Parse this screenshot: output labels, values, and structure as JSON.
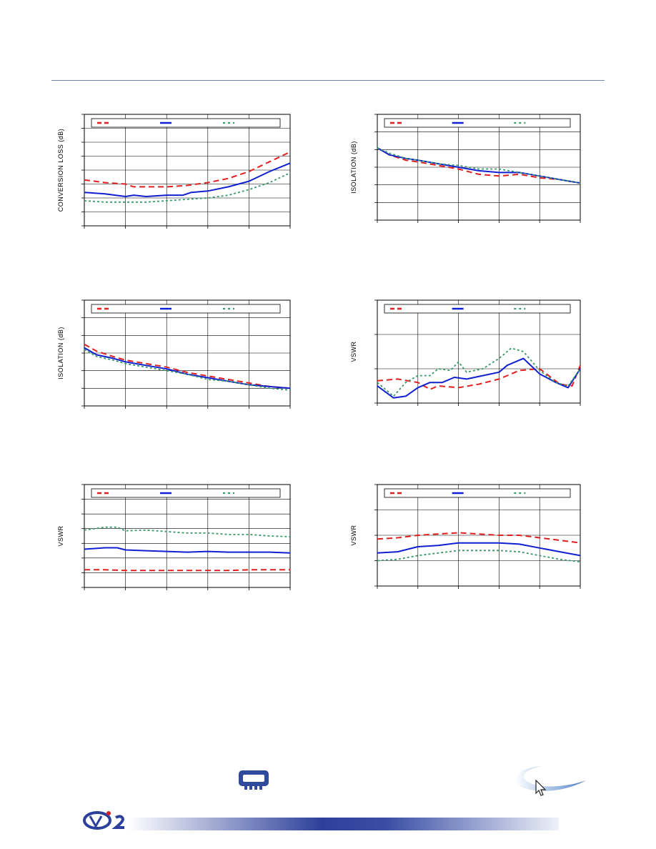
{
  "page": {
    "colors": {
      "rule": "#6f86a6",
      "red": "#e02020",
      "blue": "#1020d0",
      "green": "#3a9a6a",
      "grid": "#000000",
      "footer_dark": "#2c3f9a",
      "footer_light": "#e8ecf5"
    },
    "icons": [
      "chip-badge-icon",
      "cursor-swoosh-icon",
      "company-logo-icon"
    ]
  },
  "chart_data": [
    {
      "type": "line",
      "ylabel": "CONVERSION LOSS (dB)",
      "xlim": [
        0,
        5
      ],
      "ylim": [
        0,
        8
      ],
      "x_ticks": 5,
      "y_ticks": 8,
      "grid": true,
      "legend": "top",
      "series": [
        {
          "x": [
            0,
            0.5,
            1,
            1.2,
            1.5,
            2,
            2.5,
            3,
            3.5,
            4,
            4.5,
            5
          ],
          "values": [
            3.3,
            3.1,
            3.0,
            2.8,
            2.8,
            2.8,
            2.9,
            3.1,
            3.4,
            3.9,
            4.6,
            5.3
          ]
        },
        {
          "x": [
            0,
            0.5,
            1,
            1.2,
            1.5,
            2,
            2.4,
            2.6,
            3,
            3.5,
            4,
            4.5,
            5
          ],
          "values": [
            2.4,
            2.3,
            2.1,
            2.2,
            2.1,
            2.2,
            2.2,
            2.4,
            2.5,
            2.8,
            3.2,
            3.9,
            4.5
          ]
        },
        {
          "x": [
            0,
            0.5,
            1,
            1.5,
            2,
            2.5,
            3,
            3.5,
            4,
            4.5,
            5
          ],
          "values": [
            1.8,
            1.7,
            1.7,
            1.7,
            1.8,
            1.9,
            2.0,
            2.2,
            2.6,
            3.1,
            3.8
          ]
        }
      ]
    },
    {
      "type": "line",
      "ylabel": "ISOLATION (dB)",
      "xlim": [
        0,
        5
      ],
      "ylim": [
        0,
        6
      ],
      "x_ticks": 5,
      "y_ticks": 6,
      "grid": true,
      "legend": "top",
      "series": [
        {
          "x": [
            0,
            0.3,
            0.7,
            1,
            1.5,
            2,
            2.5,
            3,
            3.5,
            4,
            4.5,
            5
          ],
          "values": [
            4.1,
            3.7,
            3.4,
            3.3,
            3.1,
            2.9,
            2.6,
            2.5,
            2.6,
            2.4,
            2.3,
            2.1
          ]
        },
        {
          "x": [
            0,
            0.3,
            0.7,
            1,
            1.5,
            2,
            2.5,
            3,
            3.5,
            4,
            4.5,
            5
          ],
          "values": [
            4.1,
            3.7,
            3.5,
            3.4,
            3.2,
            3.0,
            2.8,
            2.7,
            2.7,
            2.5,
            2.3,
            2.1
          ]
        },
        {
          "x": [
            0,
            0.3,
            0.7,
            1,
            1.5,
            2,
            2.5,
            3,
            3.5,
            4,
            4.5,
            5
          ],
          "values": [
            4.1,
            3.8,
            3.5,
            3.4,
            3.2,
            3.1,
            2.9,
            2.9,
            2.7,
            2.5,
            2.3,
            2.1
          ]
        }
      ]
    },
    {
      "type": "line",
      "ylabel": "ISOLATION (dB)",
      "xlim": [
        0,
        5
      ],
      "ylim": [
        0,
        6
      ],
      "x_ticks": 5,
      "y_ticks": 6,
      "grid": true,
      "legend": "top",
      "series": [
        {
          "x": [
            0,
            0.3,
            0.7,
            1,
            1.5,
            2,
            2.5,
            3,
            3.5,
            4,
            4.5,
            5
          ],
          "values": [
            3.5,
            3.1,
            2.8,
            2.6,
            2.4,
            2.2,
            1.9,
            1.7,
            1.5,
            1.3,
            1.1,
            1.0
          ]
        },
        {
          "x": [
            0,
            0.3,
            0.7,
            1,
            1.5,
            2,
            2.5,
            3,
            3.5,
            4,
            4.5,
            5
          ],
          "values": [
            3.3,
            2.9,
            2.7,
            2.5,
            2.3,
            2.1,
            1.8,
            1.6,
            1.4,
            1.2,
            1.1,
            1.0
          ]
        },
        {
          "x": [
            0,
            0.3,
            0.7,
            1,
            1.5,
            2,
            2.5,
            3,
            3.5,
            4,
            4.5,
            5
          ],
          "values": [
            3.2,
            2.8,
            2.6,
            2.4,
            2.2,
            2.0,
            1.8,
            1.5,
            1.4,
            1.2,
            1.0,
            0.9
          ]
        }
      ]
    },
    {
      "type": "line",
      "ylabel": "VSWR",
      "xlim": [
        0,
        5
      ],
      "ylim": [
        0,
        3
      ],
      "x_ticks": 5,
      "y_ticks": 3,
      "grid": true,
      "legend": "top",
      "series": [
        {
          "x": [
            0,
            0.5,
            1,
            1.3,
            1.5,
            2,
            2.5,
            3,
            3.5,
            4,
            4.5,
            4.8,
            5
          ],
          "values": [
            0.65,
            0.7,
            0.6,
            0.4,
            0.5,
            0.45,
            0.55,
            0.7,
            0.95,
            1.0,
            0.55,
            0.5,
            1.1
          ]
        },
        {
          "x": [
            0,
            0.4,
            0.7,
            1,
            1.3,
            1.6,
            1.9,
            2.2,
            2.6,
            3,
            3.2,
            3.6,
            4,
            4.4,
            4.7,
            5
          ],
          "values": [
            0.5,
            0.15,
            0.2,
            0.45,
            0.6,
            0.6,
            0.75,
            0.7,
            0.8,
            0.9,
            1.1,
            1.3,
            0.85,
            0.6,
            0.45,
            1.0
          ]
        },
        {
          "x": [
            0,
            0.4,
            0.7,
            1,
            1.3,
            1.5,
            1.8,
            2,
            2.2,
            2.6,
            3,
            3.3,
            3.6,
            4,
            4.4,
            4.7,
            5
          ],
          "values": [
            0.6,
            0.2,
            0.6,
            0.8,
            0.8,
            1.0,
            0.95,
            1.2,
            0.9,
            1.0,
            1.3,
            1.6,
            1.5,
            0.95,
            0.6,
            0.5,
            1.0
          ]
        }
      ]
    },
    {
      "type": "line",
      "ylabel": "VSWR",
      "xlim": [
        0,
        5
      ],
      "ylim": [
        0,
        7
      ],
      "x_ticks": 5,
      "y_ticks": 7,
      "grid": true,
      "legend": "top",
      "series": [
        {
          "x": [
            0,
            0.5,
            1,
            1.5,
            2,
            2.5,
            3,
            3.5,
            4,
            4.5,
            5
          ],
          "values": [
            1.2,
            1.2,
            1.15,
            1.15,
            1.15,
            1.15,
            1.15,
            1.15,
            1.2,
            1.2,
            1.2
          ]
        },
        {
          "x": [
            0,
            0.5,
            0.8,
            1,
            1.5,
            2,
            2.5,
            3,
            3.5,
            4,
            4.5,
            5
          ],
          "values": [
            2.6,
            2.7,
            2.7,
            2.55,
            2.5,
            2.45,
            2.4,
            2.45,
            2.4,
            2.4,
            2.4,
            2.35
          ]
        },
        {
          "x": [
            0,
            0.5,
            0.8,
            1,
            1.5,
            2,
            2.5,
            3,
            3.5,
            4,
            4.5,
            5
          ],
          "values": [
            3.9,
            4.1,
            4.1,
            3.85,
            3.9,
            3.8,
            3.7,
            3.7,
            3.6,
            3.6,
            3.5,
            3.45
          ]
        }
      ]
    },
    {
      "type": "line",
      "ylabel": "VSWR",
      "xlim": [
        0,
        5
      ],
      "ylim": [
        0,
        4
      ],
      "x_ticks": 5,
      "y_ticks": 4,
      "grid": true,
      "legend": "top",
      "series": [
        {
          "x": [
            0,
            0.5,
            1,
            1.5,
            2,
            2.5,
            3,
            3.5,
            4,
            4.5,
            5
          ],
          "values": [
            1.85,
            1.9,
            2.0,
            2.05,
            2.1,
            2.05,
            2.0,
            2.0,
            1.9,
            1.8,
            1.7
          ]
        },
        {
          "x": [
            0,
            0.5,
            1,
            1.5,
            2,
            2.5,
            3,
            3.5,
            4,
            4.5,
            5
          ],
          "values": [
            1.3,
            1.35,
            1.55,
            1.6,
            1.7,
            1.7,
            1.7,
            1.65,
            1.5,
            1.35,
            1.2
          ]
        },
        {
          "x": [
            0,
            0.5,
            1,
            1.5,
            2,
            2.5,
            3,
            3.5,
            4,
            4.5,
            5
          ],
          "values": [
            1.0,
            1.05,
            1.2,
            1.3,
            1.4,
            1.4,
            1.4,
            1.35,
            1.2,
            1.05,
            0.95
          ]
        }
      ]
    }
  ]
}
